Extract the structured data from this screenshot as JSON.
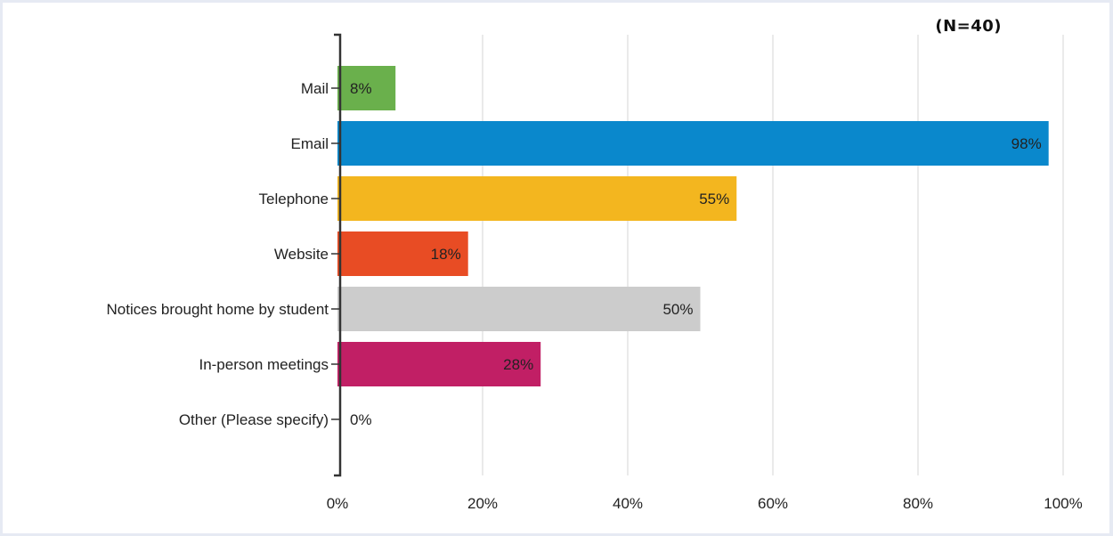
{
  "sample_note": "(N=40)",
  "chart_data": {
    "type": "bar",
    "orientation": "horizontal",
    "title": "",
    "xlabel": "",
    "ylabel": "",
    "xlim": [
      0,
      100
    ],
    "x_ticks": [
      0,
      20,
      40,
      60,
      80,
      100
    ],
    "x_tick_labels": [
      "0%",
      "20%",
      "40%",
      "60%",
      "80%",
      "100%"
    ],
    "grid": "vertical",
    "categories": [
      "Mail",
      "Email",
      "Telephone",
      "Website",
      "Notices brought home by student",
      "In-person meetings",
      "Other (Please specify)"
    ],
    "values": [
      8,
      98,
      55,
      18,
      50,
      28,
      0
    ],
    "value_labels": [
      "8%",
      "98%",
      "55%",
      "18%",
      "50%",
      "28%",
      "0%"
    ],
    "colors": [
      "#6ab04c",
      "#0a88cc",
      "#f3b61f",
      "#e84c24",
      "#cccccc",
      "#c11f65",
      "#999999"
    ]
  }
}
